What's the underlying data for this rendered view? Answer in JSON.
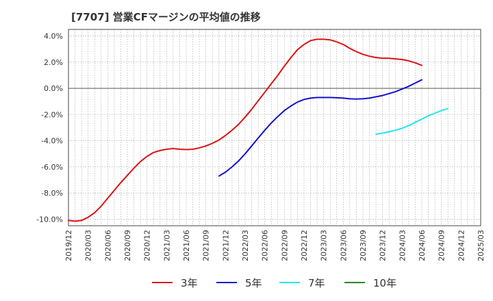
{
  "chart_data": {
    "type": "line",
    "title": "[7707]  営業CFマージンの平均値の推移",
    "xlabel": "",
    "ylabel": "",
    "ylim": [
      -10.5,
      4.5
    ],
    "y_ticks": [
      4,
      2,
      0,
      -2,
      -4,
      -6,
      -8,
      -10
    ],
    "y_tick_labels": [
      "4.0%",
      "2.0%",
      "0.0%",
      "-2.0%",
      "-4.0%",
      "-6.0%",
      "-8.0%",
      "-10.0%"
    ],
    "x_ticks": [
      "2019/12",
      "2020/03",
      "2020/06",
      "2020/09",
      "2020/12",
      "2021/03",
      "2021/06",
      "2021/09",
      "2021/12",
      "2022/03",
      "2022/06",
      "2022/09",
      "2022/12",
      "2023/03",
      "2023/06",
      "2023/09",
      "2023/12",
      "2024/03",
      "2024/06",
      "2024/09",
      "2024/12",
      "2025/03"
    ],
    "grid": true,
    "legend_position": "bottom",
    "zero_line": true,
    "series": [
      {
        "name": "3年",
        "color": "#dd1111",
        "points": [
          [
            "2019/12",
            -10.1
          ],
          [
            "2020/01",
            -10.15
          ],
          [
            "2020/02",
            -10.1
          ],
          [
            "2020/03",
            -9.85
          ],
          [
            "2020/04",
            -9.5
          ],
          [
            "2020/05",
            -9.0
          ],
          [
            "2020/06",
            -8.4
          ],
          [
            "2020/07",
            -7.8
          ],
          [
            "2020/08",
            -7.2
          ],
          [
            "2020/09",
            -6.65
          ],
          [
            "2020/10",
            -6.1
          ],
          [
            "2020/11",
            -5.6
          ],
          [
            "2020/12",
            -5.2
          ],
          [
            "2021/01",
            -4.9
          ],
          [
            "2021/02",
            -4.75
          ],
          [
            "2021/03",
            -4.65
          ],
          [
            "2021/04",
            -4.6
          ],
          [
            "2021/05",
            -4.65
          ],
          [
            "2021/06",
            -4.68
          ],
          [
            "2021/07",
            -4.65
          ],
          [
            "2021/08",
            -4.55
          ],
          [
            "2021/09",
            -4.4
          ],
          [
            "2021/10",
            -4.2
          ],
          [
            "2021/11",
            -3.95
          ],
          [
            "2021/12",
            -3.6
          ],
          [
            "2022/01",
            -3.2
          ],
          [
            "2022/02",
            -2.75
          ],
          [
            "2022/03",
            -2.2
          ],
          [
            "2022/04",
            -1.6
          ],
          [
            "2022/05",
            -0.95
          ],
          [
            "2022/06",
            -0.3
          ],
          [
            "2022/07",
            0.35
          ],
          [
            "2022/08",
            1.0
          ],
          [
            "2022/09",
            1.7
          ],
          [
            "2022/10",
            2.35
          ],
          [
            "2022/11",
            2.95
          ],
          [
            "2022/12",
            3.35
          ],
          [
            "2023/01",
            3.65
          ],
          [
            "2023/02",
            3.75
          ],
          [
            "2023/03",
            3.75
          ],
          [
            "2023/04",
            3.7
          ],
          [
            "2023/05",
            3.55
          ],
          [
            "2023/06",
            3.35
          ],
          [
            "2023/07",
            3.05
          ],
          [
            "2023/08",
            2.8
          ],
          [
            "2023/09",
            2.6
          ],
          [
            "2023/10",
            2.45
          ],
          [
            "2023/11",
            2.35
          ],
          [
            "2023/12",
            2.3
          ],
          [
            "2024/01",
            2.3
          ],
          [
            "2024/02",
            2.25
          ],
          [
            "2024/03",
            2.2
          ],
          [
            "2024/04",
            2.1
          ],
          [
            "2024/05",
            1.95
          ],
          [
            "2024/06",
            1.75
          ]
        ]
      },
      {
        "name": "5年",
        "color": "#1111cc",
        "points": [
          [
            "2021/11",
            -6.7
          ],
          [
            "2021/12",
            -6.4
          ],
          [
            "2022/01",
            -6.0
          ],
          [
            "2022/02",
            -5.55
          ],
          [
            "2022/03",
            -5.0
          ],
          [
            "2022/04",
            -4.4
          ],
          [
            "2022/05",
            -3.8
          ],
          [
            "2022/06",
            -3.2
          ],
          [
            "2022/07",
            -2.65
          ],
          [
            "2022/08",
            -2.15
          ],
          [
            "2022/09",
            -1.7
          ],
          [
            "2022/10",
            -1.35
          ],
          [
            "2022/11",
            -1.05
          ],
          [
            "2022/12",
            -0.85
          ],
          [
            "2023/01",
            -0.75
          ],
          [
            "2023/02",
            -0.7
          ],
          [
            "2023/03",
            -0.7
          ],
          [
            "2023/04",
            -0.7
          ],
          [
            "2023/05",
            -0.72
          ],
          [
            "2023/06",
            -0.75
          ],
          [
            "2023/07",
            -0.8
          ],
          [
            "2023/08",
            -0.82
          ],
          [
            "2023/09",
            -0.8
          ],
          [
            "2023/10",
            -0.75
          ],
          [
            "2023/11",
            -0.65
          ],
          [
            "2023/12",
            -0.55
          ],
          [
            "2024/01",
            -0.4
          ],
          [
            "2024/02",
            -0.25
          ],
          [
            "2024/03",
            -0.05
          ],
          [
            "2024/04",
            0.15
          ],
          [
            "2024/05",
            0.4
          ],
          [
            "2024/06",
            0.65
          ]
        ]
      },
      {
        "name": "7年",
        "color": "#22e5f0",
        "points": [
          [
            "2023/11",
            -3.5
          ],
          [
            "2023/12",
            -3.42
          ],
          [
            "2024/01",
            -3.32
          ],
          [
            "2024/02",
            -3.2
          ],
          [
            "2024/03",
            -3.05
          ],
          [
            "2024/04",
            -2.85
          ],
          [
            "2024/05",
            -2.6
          ],
          [
            "2024/06",
            -2.35
          ],
          [
            "2024/07",
            -2.1
          ],
          [
            "2024/08",
            -1.9
          ],
          [
            "2024/09",
            -1.7
          ],
          [
            "2024/10",
            -1.55
          ]
        ]
      },
      {
        "name": "10年",
        "color": "#228822",
        "points": []
      }
    ]
  }
}
